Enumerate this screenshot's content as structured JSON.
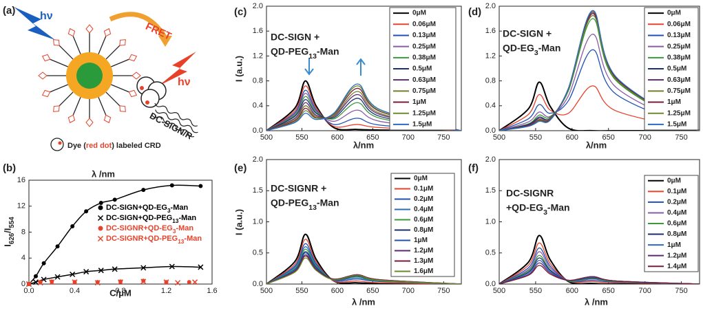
{
  "illustration": {
    "label": "(a)",
    "photon_in": "hν",
    "fret": "FRET",
    "photon_out": "hν",
    "receptor": "DC-SIGN/R",
    "caption_start": "Dye (",
    "caption_highlight": "red dot",
    "caption_end": ") labeled CRD"
  },
  "chart_data": [
    {
      "type": "scatter",
      "label": "(b)",
      "top_label": "λ /nm",
      "x_label": "C/μM",
      "y_label": "I626/I554",
      "xlim": [
        0,
        1.6
      ],
      "xticks": [
        {
          "value": 0,
          "label": "0.0"
        },
        0.4,
        0.8,
        1.2,
        1.6
      ],
      "ylim": [
        0,
        16
      ],
      "yticks": [
        0,
        4,
        8,
        12,
        16
      ],
      "series": [
        {
          "name": "DC-SIGN+QD-EG3-Man",
          "color": "#000000",
          "marker": "dot",
          "line": true,
          "x": [
            0,
            0.06,
            0.13,
            0.25,
            0.38,
            0.5,
            0.63,
            0.75,
            1,
            1.25,
            1.5
          ],
          "values": [
            0,
            1.2,
            3.2,
            5.8,
            8.9,
            11.2,
            12.5,
            13,
            14.5,
            15.2,
            15.1
          ]
        },
        {
          "name": "DC-SIGN+QD-PEG13-Man",
          "color": "#000000",
          "marker": "cross",
          "line": true,
          "x": [
            0,
            0.06,
            0.13,
            0.25,
            0.38,
            0.5,
            0.63,
            0.75,
            1,
            1.25,
            1.5
          ],
          "values": [
            0,
            0.3,
            0.7,
            1.1,
            1.5,
            1.9,
            2.1,
            2.3,
            2.5,
            2.7,
            2.6
          ]
        },
        {
          "name": "DC-SIGNR+QD-EG3-Man",
          "color": "#e8412a",
          "marker": "dot",
          "line": false,
          "x": [
            0,
            0.1,
            0.2,
            0.4,
            0.6,
            0.8,
            1,
            1.2,
            1.4
          ],
          "values": [
            0,
            0.3,
            0.4,
            0.3,
            0.3,
            0.4,
            0.5,
            0.3,
            0.3
          ]
        },
        {
          "name": "DC-SIGNR+QD-PEG13-Man",
          "color": "#e8412a",
          "marker": "cross",
          "line": false,
          "x": [
            0,
            0.1,
            0.2,
            0.4,
            0.6,
            0.8,
            1,
            1.2,
            1.3,
            1.45
          ],
          "values": [
            0,
            0.2,
            0.3,
            0.3,
            0.2,
            0.3,
            0.4,
            0.3,
            0.2,
            0.3
          ]
        }
      ]
    },
    {
      "type": "line",
      "label": "(c)",
      "annotation": [
        "DC-SIGN +",
        "QD-PEG13-Man"
      ],
      "x_label": "λ/nm",
      "y_label": "I (a.u.)",
      "xlim": [
        500,
        775
      ],
      "xticks": [
        500,
        550,
        600,
        650,
        700,
        750
      ],
      "ylim": [
        0,
        2
      ],
      "yticks": [
        {
          "value": 0,
          "label": "0.0"
        },
        0.4,
        0.8,
        1.2,
        1.6,
        {
          "value": 2,
          "label": "2.0"
        }
      ],
      "x": [
        500,
        540,
        555,
        570,
        595,
        628,
        660,
        775
      ],
      "series": [
        {
          "name": "0μM",
          "color": "#000000",
          "values": [
            0,
            0.36,
            0.8,
            0.4,
            0.05,
            0.02,
            0.01,
            0
          ]
        },
        {
          "name": "0.06μM",
          "color": "#e8412a",
          "values": [
            0,
            0.32,
            0.72,
            0.37,
            0.07,
            0.1,
            0.05,
            0
          ]
        },
        {
          "name": "0.13μM",
          "color": "#1f4fb5",
          "values": [
            0,
            0.29,
            0.65,
            0.34,
            0.1,
            0.2,
            0.09,
            0
          ]
        },
        {
          "name": "0.25μM",
          "color": "#8a5aa8",
          "values": [
            0,
            0.27,
            0.6,
            0.32,
            0.15,
            0.33,
            0.15,
            0
          ]
        },
        {
          "name": "0.38μM",
          "color": "#3a9a3a",
          "values": [
            0,
            0.25,
            0.55,
            0.3,
            0.19,
            0.45,
            0.2,
            0
          ]
        },
        {
          "name": "0.5μM",
          "color": "#1a2f6e",
          "values": [
            0,
            0.23,
            0.5,
            0.28,
            0.21,
            0.52,
            0.23,
            0
          ]
        },
        {
          "name": "0.63μM",
          "color": "#5a2a6e",
          "values": [
            0,
            0.2,
            0.45,
            0.25,
            0.23,
            0.58,
            0.26,
            0
          ]
        },
        {
          "name": "0.75μM",
          "color": "#7a7a2a",
          "values": [
            0,
            0.18,
            0.4,
            0.23,
            0.24,
            0.63,
            0.28,
            0
          ]
        },
        {
          "name": "1μM",
          "color": "#7a1a3a",
          "values": [
            0,
            0.16,
            0.36,
            0.21,
            0.26,
            0.68,
            0.31,
            0
          ]
        },
        {
          "name": "1.25μM",
          "color": "#6a8a2a",
          "values": [
            0,
            0.14,
            0.32,
            0.2,
            0.27,
            0.72,
            0.32,
            0
          ]
        },
        {
          "name": "1.5μM",
          "color": "#2a6ac0",
          "values": [
            0,
            0.13,
            0.28,
            0.18,
            0.28,
            0.75,
            0.34,
            0
          ]
        }
      ]
    },
    {
      "type": "line",
      "label": "(d)",
      "annotation": [
        "DC-SIGN +",
        "QD-EG3-Man"
      ],
      "x_label": "λ/nm",
      "xlim": [
        500,
        775
      ],
      "xticks": [
        500,
        550,
        600,
        650,
        700,
        750
      ],
      "ylim": [
        0,
        2
      ],
      "yticks": [
        {
          "value": 0,
          "label": "0.0"
        },
        0.4,
        0.8,
        1.2,
        1.6,
        {
          "value": 2,
          "label": "2.0"
        }
      ],
      "x": [
        500,
        540,
        555,
        570,
        595,
        628,
        660,
        775
      ],
      "series": [
        {
          "name": "0μM",
          "color": "#000000",
          "values": [
            0,
            0.35,
            0.78,
            0.39,
            0.04,
            0,
            0,
            0
          ]
        },
        {
          "name": "0.06μM",
          "color": "#e8412a",
          "values": [
            0,
            0.26,
            0.58,
            0.33,
            0.28,
            0.72,
            0.32,
            0
          ]
        },
        {
          "name": "0.13μM",
          "color": "#1f4fb5",
          "values": [
            0,
            0.19,
            0.42,
            0.28,
            0.48,
            1.3,
            0.59,
            0
          ]
        },
        {
          "name": "0.25μM",
          "color": "#8a5aa8",
          "values": [
            0,
            0.14,
            0.3,
            0.23,
            0.56,
            1.55,
            0.7,
            0
          ]
        },
        {
          "name": "0.38μM",
          "color": "#3a9a3a",
          "values": [
            0,
            0.11,
            0.25,
            0.22,
            0.64,
            1.8,
            0.81,
            0
          ]
        },
        {
          "name": "0.5μM",
          "color": "#1a2f6e",
          "values": [
            0,
            0.1,
            0.22,
            0.2,
            0.66,
            1.85,
            0.83,
            0
          ]
        },
        {
          "name": "0.63μM",
          "color": "#5a2a6e",
          "values": [
            0,
            0.09,
            0.2,
            0.2,
            0.68,
            1.9,
            0.86,
            0
          ]
        },
        {
          "name": "0.75μM",
          "color": "#7a7a2a",
          "values": [
            0,
            0.08,
            0.18,
            0.19,
            0.68,
            1.92,
            0.86,
            0
          ]
        },
        {
          "name": "1μM",
          "color": "#7a1a3a",
          "values": [
            0,
            0.08,
            0.17,
            0.18,
            0.67,
            1.88,
            0.85,
            0
          ]
        },
        {
          "name": "1.25μM",
          "color": "#6a8a2a",
          "values": [
            0,
            0.07,
            0.16,
            0.17,
            0.66,
            1.85,
            0.83,
            0
          ]
        },
        {
          "name": "1.5μM",
          "color": "#2a6ac0",
          "values": [
            0,
            0.07,
            0.15,
            0.17,
            0.68,
            1.93,
            0.87,
            0
          ]
        }
      ]
    },
    {
      "type": "line",
      "label": "(e)",
      "annotation": [
        "DC-SIGNR +",
        "QD-PEG13-Man"
      ],
      "x_label": "λ /nm",
      "y_label": "I (a.u.)",
      "xlim": [
        500,
        775
      ],
      "xticks": [
        500,
        550,
        600,
        650,
        700,
        750
      ],
      "ylim": [
        0,
        2
      ],
      "yticks": [
        {
          "value": 0,
          "label": "0.0"
        },
        0.5,
        {
          "value": 1,
          "label": "1.0"
        },
        1.5,
        {
          "value": 2,
          "label": "2.0"
        }
      ],
      "x": [
        500,
        540,
        555,
        570,
        595,
        628,
        660,
        775
      ],
      "series": [
        {
          "name": "0μM",
          "color": "#000000",
          "values": [
            0,
            0.36,
            0.8,
            0.4,
            0.05,
            0.02,
            0.01,
            0
          ]
        },
        {
          "name": "0.1μM",
          "color": "#e8412a",
          "values": [
            0,
            0.32,
            0.72,
            0.36,
            0.05,
            0.05,
            0.02,
            0
          ]
        },
        {
          "name": "0.2μM",
          "color": "#1f4fb5",
          "values": [
            0,
            0.29,
            0.65,
            0.33,
            0.06,
            0.08,
            0.04,
            0
          ]
        },
        {
          "name": "0.4μM",
          "color": "#2a6ac0",
          "values": [
            0,
            0.27,
            0.6,
            0.31,
            0.07,
            0.1,
            0.05,
            0
          ]
        },
        {
          "name": "0.6μM",
          "color": "#3a9a3a",
          "values": [
            0,
            0.25,
            0.56,
            0.29,
            0.07,
            0.12,
            0.05,
            0
          ]
        },
        {
          "name": "0.8μM",
          "color": "#1a2f6e",
          "values": [
            0,
            0.23,
            0.52,
            0.27,
            0.07,
            0.13,
            0.06,
            0
          ]
        },
        {
          "name": "1μM",
          "color": "#1f4fb5",
          "values": [
            0,
            0.23,
            0.5,
            0.26,
            0.07,
            0.14,
            0.06,
            0
          ]
        },
        {
          "name": "1.2μM",
          "color": "#5a2a6e",
          "values": [
            0,
            0.21,
            0.47,
            0.24,
            0.08,
            0.15,
            0.07,
            0
          ]
        },
        {
          "name": "1.3μM",
          "color": "#7a1a3a",
          "values": [
            0,
            0.2,
            0.45,
            0.23,
            0.08,
            0.15,
            0.07,
            0
          ]
        },
        {
          "name": "1.6μM",
          "color": "#6a8a2a",
          "values": [
            0,
            0.19,
            0.42,
            0.22,
            0.07,
            0.14,
            0.06,
            0
          ]
        }
      ]
    },
    {
      "type": "line",
      "label": "(f)",
      "annotation": [
        "DC-SIGNR",
        "+QD-EG3-Man"
      ],
      "x_label": "λ /nm",
      "xlim": [
        500,
        775
      ],
      "xticks": [
        500,
        550,
        600,
        650,
        700,
        750
      ],
      "ylim": [
        0,
        2
      ],
      "yticks": [
        {
          "value": 0,
          "label": "0.0"
        },
        0.5,
        {
          "value": 1,
          "label": "1.0"
        },
        1.5,
        {
          "value": 2,
          "label": "2.0"
        }
      ],
      "x": [
        500,
        540,
        555,
        570,
        595,
        628,
        660,
        775
      ],
      "series": [
        {
          "name": "0μM",
          "color": "#000000",
          "values": [
            0,
            0.35,
            0.78,
            0.39,
            0.04,
            0.01,
            0,
            0
          ]
        },
        {
          "name": "0.1μM",
          "color": "#e8412a",
          "values": [
            0,
            0.3,
            0.66,
            0.33,
            0.05,
            0.04,
            0.02,
            0
          ]
        },
        {
          "name": "0.2μM",
          "color": "#1f4fb5",
          "values": [
            0,
            0.26,
            0.58,
            0.29,
            0.05,
            0.06,
            0.03,
            0
          ]
        },
        {
          "name": "0.4μM",
          "color": "#8a5aa8",
          "values": [
            0,
            0.23,
            0.52,
            0.26,
            0.05,
            0.08,
            0.04,
            0
          ]
        },
        {
          "name": "0.6μM",
          "color": "#3a9a3a",
          "values": [
            0,
            0.21,
            0.46,
            0.23,
            0.05,
            0.09,
            0.04,
            0
          ]
        },
        {
          "name": "0.8μM",
          "color": "#1a2f6e",
          "values": [
            0,
            0.19,
            0.42,
            0.22,
            0.06,
            0.1,
            0.05,
            0
          ]
        },
        {
          "name": "1μM",
          "color": "#2a6ac0",
          "values": [
            0,
            0.17,
            0.38,
            0.2,
            0.06,
            0.11,
            0.05,
            0
          ]
        },
        {
          "name": "1.2μM",
          "color": "#5a2a6e",
          "values": [
            0,
            0.15,
            0.34,
            0.18,
            0.06,
            0.12,
            0.05,
            0
          ]
        },
        {
          "name": "1.4μM",
          "color": "#7a1a3a",
          "values": [
            0,
            0.14,
            0.3,
            0.16,
            0.06,
            0.12,
            0.05,
            0
          ]
        }
      ]
    }
  ]
}
